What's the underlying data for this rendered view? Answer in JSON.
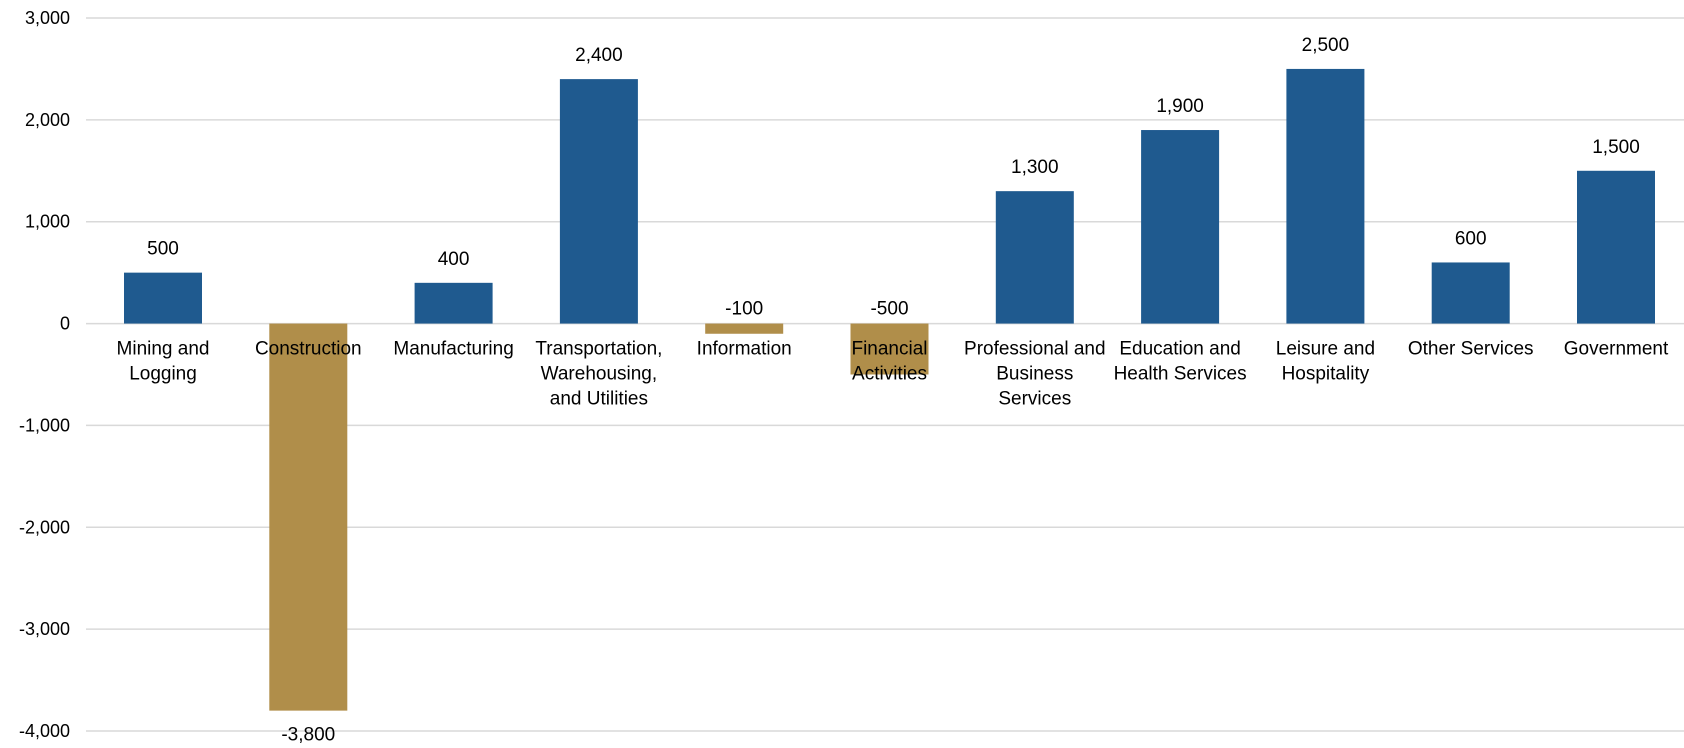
{
  "colors": {
    "positive": "#1f5a8f",
    "negative": "#b08e4a",
    "grid": "#d9d9d9",
    "text": "#000000"
  },
  "chart_data": {
    "type": "bar",
    "title": "",
    "xlabel": "",
    "ylabel": "",
    "ylim": [
      -4000,
      3000
    ],
    "yticks": [
      3000,
      2000,
      1000,
      0,
      -1000,
      -2000,
      -3000,
      -4000
    ],
    "ytick_labels": [
      "3,000",
      "2,000",
      "1,000",
      "0",
      "-1,000",
      "-2,000",
      "-3,000",
      "-4,000"
    ],
    "grid": true,
    "legend": "none",
    "categories": [
      [
        "Mining and",
        "Logging"
      ],
      [
        "Construction"
      ],
      [
        "Manufacturing"
      ],
      [
        "Transportation,",
        "Warehousing,",
        "and Utilities"
      ],
      [
        "Information"
      ],
      [
        "Financial",
        "Activities"
      ],
      [
        "Professional and",
        "Business",
        "Services"
      ],
      [
        "Education and",
        "Health Services"
      ],
      [
        "Leisure and",
        "Hospitality"
      ],
      [
        "Other Services"
      ],
      [
        "Government"
      ]
    ],
    "values": [
      500,
      -3800,
      400,
      2400,
      -100,
      -500,
      1300,
      1900,
      2500,
      600,
      1500
    ],
    "data_labels": [
      "500",
      "-3,800",
      "400",
      "2,400",
      "-100",
      "-500",
      "1,300",
      "1,900",
      "2,500",
      "600",
      "1,500"
    ]
  }
}
